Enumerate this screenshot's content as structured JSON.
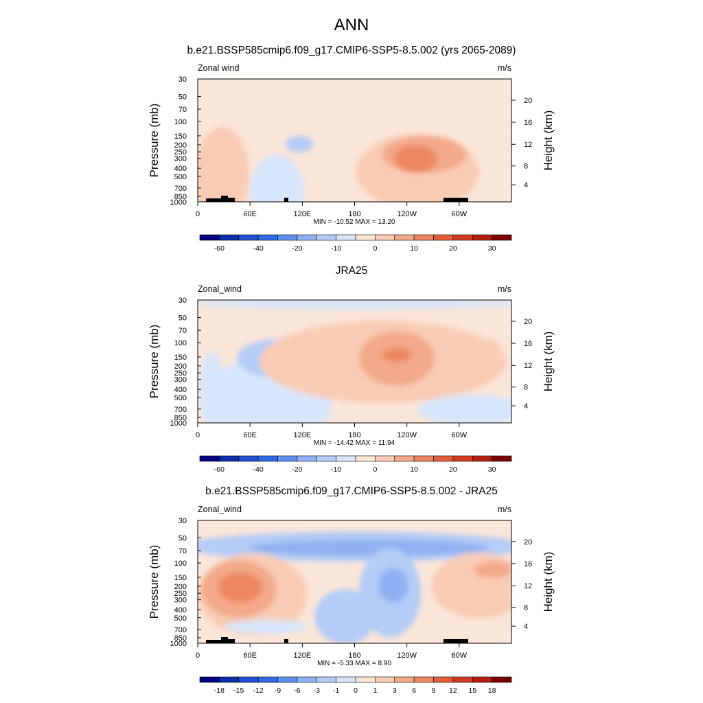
{
  "figure": {
    "title": "ANN"
  },
  "colormaps": {
    "abs": [
      "#000080",
      "#0a2fa8",
      "#1f4fd0",
      "#2e6ae6",
      "#5f8fef",
      "#8fb0f2",
      "#b4ccf6",
      "#d7e6fb",
      "#fbe6da",
      "#f9ccb5",
      "#f3a98a",
      "#ec8660",
      "#e45e3a",
      "#d23b1f",
      "#b51f10",
      "#7c0000"
    ],
    "diff": [
      "#000080",
      "#0a2fa8",
      "#1f4fd0",
      "#2e6ae6",
      "#5f8fef",
      "#8fb0f2",
      "#b4ccf6",
      "#d7e6fb",
      "#fbe6da",
      "#f9ccb5",
      "#f3a98a",
      "#ec8660",
      "#e45e3a",
      "#d23b1f",
      "#b51f10",
      "#7c0000"
    ]
  },
  "chart_data": [
    {
      "type": "heatmap",
      "title": "b.e21.BSSP585cmip6.f09_g17.CMIP6-SSP5-8.5.002 (yrs 2065-2089)",
      "left_label": "Zonal wind",
      "right_label": "m/s",
      "ylabel": "Pressure (mb)",
      "ylabel_right": "Height (km)",
      "x_ticks": [
        "0",
        "60E",
        "120E",
        "180",
        "120W",
        "60W"
      ],
      "y_ticks": [
        "30",
        "50",
        "70",
        "100",
        "150",
        "200",
        "250",
        "300",
        "400",
        "500",
        "700",
        "850",
        "1000"
      ],
      "y_ticks_right": [
        "20",
        "16",
        "12",
        "8",
        "4"
      ],
      "stats": "MIN = -10.52  MAX =  13.20",
      "colorbar_labels": [
        "-60",
        "-40",
        "-20",
        "-10",
        "0",
        "10",
        "20",
        "30"
      ],
      "colormap": "abs",
      "base": 8,
      "terrain": true,
      "features": [
        {
          "cx": 115,
          "cy": 165,
          "rx": 40,
          "ry": 55,
          "level": 7
        },
        {
          "cx": 148,
          "cy": 95,
          "rx": 20,
          "ry": 12,
          "level": 6
        },
        {
          "cx": 320,
          "cy": 135,
          "rx": 90,
          "ry": 55,
          "level": 9
        },
        {
          "cx": 330,
          "cy": 110,
          "rx": 62,
          "ry": 27,
          "level": 10
        },
        {
          "cx": 317,
          "cy": 117,
          "rx": 31,
          "ry": 20,
          "level": 11
        },
        {
          "cx": 35,
          "cy": 140,
          "rx": 40,
          "ry": 70,
          "level": 9
        },
        {
          "cx": 125,
          "cy": 245,
          "rx": 80,
          "ry": 20,
          "level": 9
        },
        {
          "cx": 15,
          "cy": 270,
          "rx": 28,
          "ry": 15,
          "level": 7
        }
      ]
    },
    {
      "type": "heatmap",
      "title": "JRA25",
      "left_label": "Zonal_wind",
      "right_label": "m/s",
      "ylabel": "Pressure (mb)",
      "ylabel_right": "Height (km)",
      "x_ticks": [
        "0",
        "60E",
        "120E",
        "180",
        "120W",
        "60W"
      ],
      "y_ticks": [
        "30",
        "50",
        "70",
        "100",
        "150",
        "200",
        "250",
        "300",
        "400",
        "500",
        "700",
        "850",
        "1000"
      ],
      "y_ticks_right": [
        "20",
        "16",
        "12",
        "8",
        "4"
      ],
      "stats": "MIN = -14.42  MAX =  11.94",
      "colorbar_labels": [
        "-60",
        "-40",
        "-20",
        "-10",
        "0",
        "10",
        "20",
        "30"
      ],
      "colormap": "abs",
      "base": 8,
      "terrain": false,
      "features": [
        {
          "cx": 228,
          "cy": 5,
          "rx": 240,
          "ry": 8,
          "level": 7
        },
        {
          "cx": 100,
          "cy": 150,
          "rx": 95,
          "ry": 65,
          "level": 7
        },
        {
          "cx": 115,
          "cy": 85,
          "rx": 58,
          "ry": 28,
          "level": 6
        },
        {
          "cx": 270,
          "cy": 90,
          "rx": 180,
          "ry": 60,
          "level": 9
        },
        {
          "cx": 290,
          "cy": 85,
          "rx": 55,
          "ry": 40,
          "level": 10
        },
        {
          "cx": 290,
          "cy": 80,
          "rx": 22,
          "ry": 10,
          "level": 11
        },
        {
          "cx": 420,
          "cy": 78,
          "rx": 25,
          "ry": 22,
          "level": 9
        },
        {
          "cx": 400,
          "cy": 160,
          "rx": 80,
          "ry": 22,
          "level": 7
        },
        {
          "cx": 20,
          "cy": 130,
          "rx": 18,
          "ry": 55,
          "level": 7
        }
      ]
    },
    {
      "type": "heatmap",
      "title": "b.e21.BSSP585cmip6.f09_g17.CMIP6-SSP5-8.5.002 - JRA25",
      "left_label": "Zonal_wind",
      "right_label": "m/s",
      "ylabel": "Pressure (mb)",
      "ylabel_right": "Height (km)",
      "x_ticks": [
        "0",
        "60E",
        "120E",
        "180",
        "120W",
        "60W"
      ],
      "y_ticks": [
        "30",
        "50",
        "70",
        "100",
        "150",
        "200",
        "250",
        "300",
        "400",
        "500",
        "700",
        "850",
        "1000"
      ],
      "y_ticks_right": [
        "20",
        "16",
        "12",
        "8",
        "4"
      ],
      "stats": "MIN = -5.33  MAX =  8.90",
      "colorbar_labels": [
        "-18",
        "-15",
        "-12",
        "-9",
        "-6",
        "-3",
        "-1",
        "0",
        "1",
        "3",
        "6",
        "9",
        "12",
        "15",
        "18"
      ],
      "colormap": "diff",
      "base": 8,
      "terrain": true,
      "features": [
        {
          "cx": 230,
          "cy": 38,
          "rx": 250,
          "ry": 22,
          "level": 6
        },
        {
          "cx": 250,
          "cy": 40,
          "rx": 175,
          "ry": 12,
          "level": 5
        },
        {
          "cx": 80,
          "cy": 108,
          "rx": 80,
          "ry": 60,
          "level": 9
        },
        {
          "cx": 60,
          "cy": 100,
          "rx": 55,
          "ry": 42,
          "level": 10
        },
        {
          "cx": 62,
          "cy": 98,
          "rx": 32,
          "ry": 22,
          "level": 11
        },
        {
          "cx": 410,
          "cy": 95,
          "rx": 70,
          "ry": 48,
          "level": 9
        },
        {
          "cx": 430,
          "cy": 72,
          "rx": 28,
          "ry": 12,
          "level": 10
        },
        {
          "cx": 280,
          "cy": 105,
          "rx": 45,
          "ry": 65,
          "level": 6
        },
        {
          "cx": 285,
          "cy": 95,
          "rx": 22,
          "ry": 25,
          "level": 5
        },
        {
          "cx": 215,
          "cy": 140,
          "rx": 45,
          "ry": 40,
          "level": 6
        },
        {
          "cx": 100,
          "cy": 155,
          "rx": 60,
          "ry": 10,
          "level": 7
        }
      ]
    }
  ]
}
